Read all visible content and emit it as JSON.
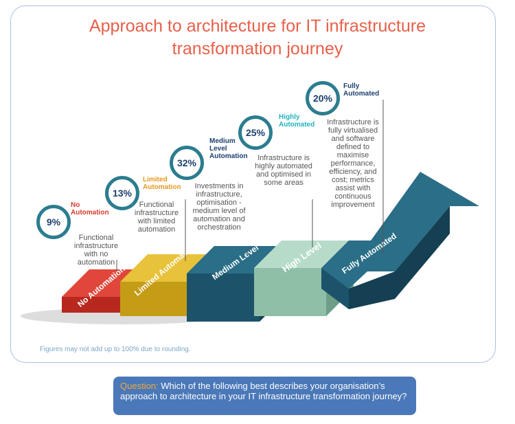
{
  "title": "Approach to architecture for IT infrastructure transformation journey",
  "stages": [
    {
      "percent": "9%",
      "level": "No Automation",
      "description": "Functional infrastructure with no automation",
      "step_label": "No Automation"
    },
    {
      "percent": "13%",
      "level": "Limited Automation",
      "description": "Functional infrastructure with limited automation",
      "step_label": "Limited Automation"
    },
    {
      "percent": "32%",
      "level": "Medium Level Automation",
      "description": "Investments in infrastructure, optimisation - medium level of automation and orchestration",
      "step_label": "Medium Level"
    },
    {
      "percent": "25%",
      "level": "Highly Automated",
      "description": "Infrastructure is highly automated and optimised in some areas",
      "step_label": "High Level"
    },
    {
      "percent": "20%",
      "level": "Fully Automated",
      "description": "Infrastructure is fully virtualised and software defined to maximise performance, efficiency, and cost; metrics assist with continuous improvement",
      "step_label": "Fully Automated"
    }
  ],
  "note": "Figures may not add up to 100% due to rounding.",
  "question": {
    "label": "Question:",
    "text": "Which of the following best describes your organisation’s approach to architecture in your IT infrastructure transformation journey?"
  }
}
